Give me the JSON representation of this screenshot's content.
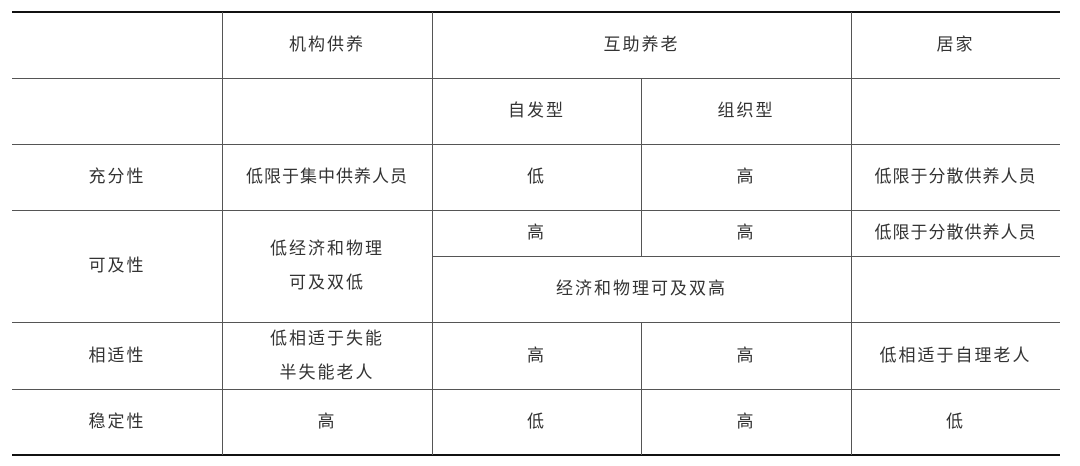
{
  "header": {
    "col_institution": "机构供养",
    "col_mutual": "互助养老",
    "col_home": "居家",
    "sub_spontaneous": "自发型",
    "sub_organized": "组织型"
  },
  "rows": {
    "adequacy": {
      "label": "充分性",
      "institution": "低限于集中供养人员",
      "spontaneous": "低",
      "organized": "高",
      "home": "低限于分散供养人员"
    },
    "accessibility": {
      "label": "可及性",
      "institution": "低经济和物理\n可及双低",
      "spontaneous": "高",
      "organized": "高",
      "home": "低限于分散供养人员",
      "mutual_merged": "经济和物理可及双高"
    },
    "suitability": {
      "label": "相适性",
      "institution": "低相适于失能\n半失能老人",
      "spontaneous": "高",
      "organized": "高",
      "home": "低相适于自理老人"
    },
    "stability": {
      "label": "稳定性",
      "institution": "高",
      "spontaneous": "低",
      "organized": "高",
      "home": "低"
    }
  }
}
